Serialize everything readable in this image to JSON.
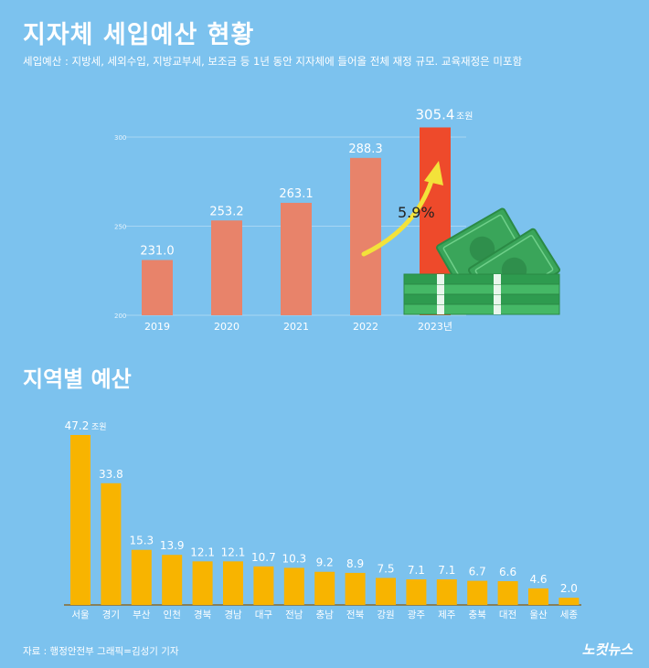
{
  "header": {
    "title": "지자체 세입예산 현황",
    "subtitle": "세입예산 : 지방세, 세외수입, 지방교부세, 보조금 등 1년 동안 지자체에 들어올 전체 재정 규모. 교육재정은 미포함"
  },
  "section2": {
    "title": "지역별 예산"
  },
  "footer": {
    "source": "자료 : 행정안전부   그래픽=김성기 기자",
    "brand": "노컷뉴스"
  },
  "chart_data": [
    {
      "type": "bar",
      "categories": [
        "2019",
        "2020",
        "2021",
        "2022",
        "2023년"
      ],
      "values": [
        231.0,
        253.2,
        263.1,
        288.3,
        305.4
      ],
      "value_labels": [
        "231.0",
        "253.2",
        "263.1",
        "288.3",
        "305.4"
      ],
      "value_unit": "조원",
      "yticks": [
        "200",
        "250",
        "300"
      ],
      "ylim": [
        200,
        300
      ],
      "annotation": "5.9%",
      "grid": true,
      "colors": {
        "bar": "#e8836a",
        "highlight": "#ee4a2b",
        "arrow": "#f3e23a"
      }
    },
    {
      "type": "bar",
      "categories": [
        "서울",
        "경기",
        "부산",
        "인천",
        "경북",
        "경남",
        "대구",
        "전남",
        "충남",
        "전북",
        "강원",
        "광주",
        "제주",
        "충북",
        "대전",
        "울산",
        "세종"
      ],
      "values": [
        47.2,
        33.8,
        15.3,
        13.9,
        12.1,
        12.1,
        10.7,
        10.3,
        9.2,
        8.9,
        7.5,
        7.1,
        7.1,
        6.7,
        6.6,
        4.6,
        2.0
      ],
      "value_labels": [
        "47.2",
        "33.8",
        "15.3",
        "13.9",
        "12.1",
        "12.1",
        "10.7",
        "10.3",
        "9.2",
        "8.9",
        "7.5",
        "7.1",
        "7.1",
        "6.7",
        "6.6",
        "4.6",
        "2.0"
      ],
      "value_unit": "조원",
      "grid": false,
      "colors": {
        "bar": "#f8b400"
      }
    }
  ]
}
